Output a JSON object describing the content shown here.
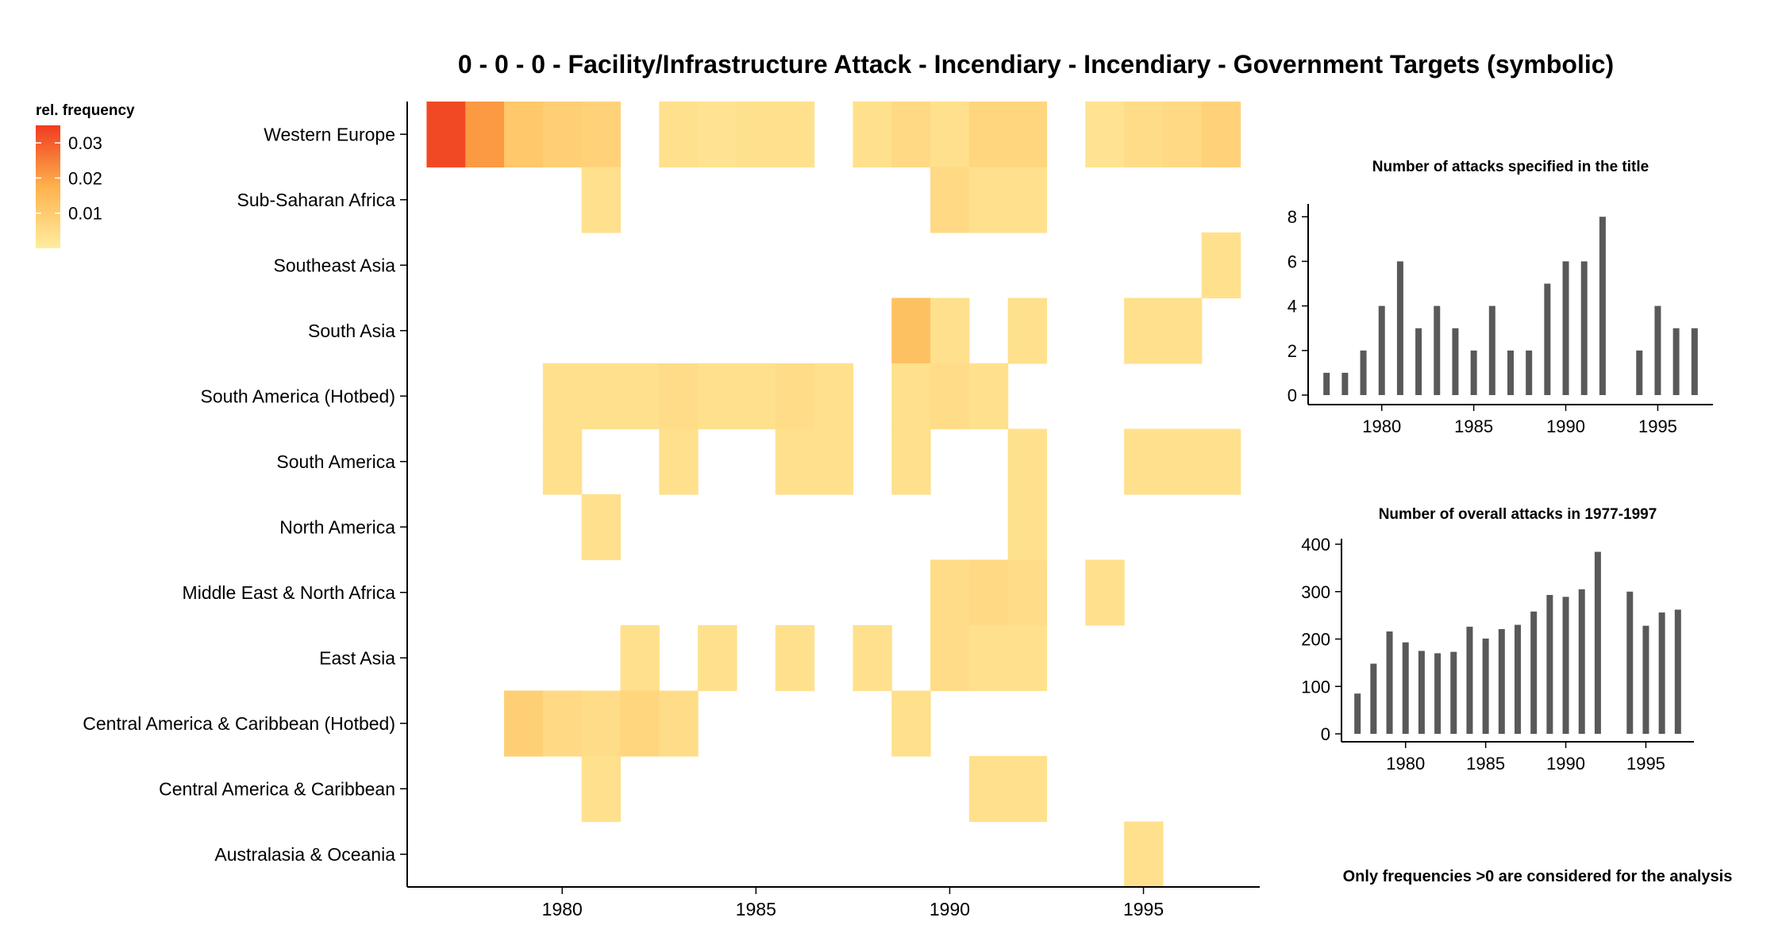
{
  "page": {
    "title": "0 - 0 - 0 - Facility/Infrastructure Attack - Incendiary - Incendiary - Government Targets (symbolic)",
    "footnote": "Only frequencies >0 are considered for the analysis"
  },
  "legend": {
    "title": "rel. frequency",
    "ticks": [
      {
        "value": 0.03,
        "label": "0.03"
      },
      {
        "value": 0.02,
        "label": "0.02"
      },
      {
        "value": 0.01,
        "label": "0.01"
      }
    ],
    "range": [
      0.0,
      0.035
    ]
  },
  "colors": {
    "low": "#FFEDA0",
    "mid": "#FEB24C",
    "high": "#F03B20",
    "bar": "#595959",
    "axis": "#000000"
  },
  "chart_data": [
    {
      "type": "heatmap",
      "title": "0 - 0 - 0 - Facility/Infrastructure Attack - Incendiary - Incendiary - Government Targets (symbolic)",
      "xlabel": "",
      "ylabel": "",
      "xlim": [
        1976,
        1998
      ],
      "x_ticks": [
        1980,
        1985,
        1990,
        1995
      ],
      "regions": [
        "Western Europe",
        "Sub-Saharan Africa",
        "Southeast Asia",
        "South Asia",
        "South America (Hotbed)",
        "South America",
        "North America",
        "Middle East & North Africa",
        "East Asia",
        "Central America & Caribbean (Hotbed)",
        "Central America & Caribbean",
        "Australasia & Oceania"
      ],
      "cells": [
        {
          "region": "Western Europe",
          "year": 1977,
          "value": 0.033
        },
        {
          "region": "Western Europe",
          "year": 1978,
          "value": 0.021
        },
        {
          "region": "Western Europe",
          "year": 1979,
          "value": 0.011
        },
        {
          "region": "Western Europe",
          "year": 1980,
          "value": 0.009
        },
        {
          "region": "Western Europe",
          "year": 1981,
          "value": 0.008
        },
        {
          "region": "Western Europe",
          "year": 1983,
          "value": 0.004
        },
        {
          "region": "Western Europe",
          "year": 1984,
          "value": 0.003
        },
        {
          "region": "Western Europe",
          "year": 1985,
          "value": 0.004
        },
        {
          "region": "Western Europe",
          "year": 1986,
          "value": 0.004
        },
        {
          "region": "Western Europe",
          "year": 1988,
          "value": 0.004
        },
        {
          "region": "Western Europe",
          "year": 1989,
          "value": 0.006
        },
        {
          "region": "Western Europe",
          "year": 1990,
          "value": 0.004
        },
        {
          "region": "Western Europe",
          "year": 1991,
          "value": 0.007
        },
        {
          "region": "Western Europe",
          "year": 1992,
          "value": 0.007
        },
        {
          "region": "Western Europe",
          "year": 1994,
          "value": 0.003
        },
        {
          "region": "Western Europe",
          "year": 1995,
          "value": 0.005
        },
        {
          "region": "Western Europe",
          "year": 1996,
          "value": 0.006
        },
        {
          "region": "Western Europe",
          "year": 1997,
          "value": 0.008
        },
        {
          "region": "Sub-Saharan Africa",
          "year": 1981,
          "value": 0.004
        },
        {
          "region": "Sub-Saharan Africa",
          "year": 1990,
          "value": 0.006
        },
        {
          "region": "Sub-Saharan Africa",
          "year": 1991,
          "value": 0.004
        },
        {
          "region": "Sub-Saharan Africa",
          "year": 1992,
          "value": 0.004
        },
        {
          "region": "Southeast Asia",
          "year": 1997,
          "value": 0.004
        },
        {
          "region": "South Asia",
          "year": 1989,
          "value": 0.013
        },
        {
          "region": "South Asia",
          "year": 1990,
          "value": 0.004
        },
        {
          "region": "South Asia",
          "year": 1992,
          "value": 0.004
        },
        {
          "region": "South Asia",
          "year": 1995,
          "value": 0.004
        },
        {
          "region": "South Asia",
          "year": 1996,
          "value": 0.004
        },
        {
          "region": "South America (Hotbed)",
          "year": 1980,
          "value": 0.004
        },
        {
          "region": "South America (Hotbed)",
          "year": 1981,
          "value": 0.004
        },
        {
          "region": "South America (Hotbed)",
          "year": 1982,
          "value": 0.004
        },
        {
          "region": "South America (Hotbed)",
          "year": 1983,
          "value": 0.005
        },
        {
          "region": "South America (Hotbed)",
          "year": 1984,
          "value": 0.004
        },
        {
          "region": "South America (Hotbed)",
          "year": 1985,
          "value": 0.004
        },
        {
          "region": "South America (Hotbed)",
          "year": 1986,
          "value": 0.005
        },
        {
          "region": "South America (Hotbed)",
          "year": 1987,
          "value": 0.004
        },
        {
          "region": "South America (Hotbed)",
          "year": 1989,
          "value": 0.004
        },
        {
          "region": "South America (Hotbed)",
          "year": 1990,
          "value": 0.005
        },
        {
          "region": "South America (Hotbed)",
          "year": 1991,
          "value": 0.004
        },
        {
          "region": "South America",
          "year": 1980,
          "value": 0.004
        },
        {
          "region": "South America",
          "year": 1983,
          "value": 0.004
        },
        {
          "region": "South America",
          "year": 1986,
          "value": 0.004
        },
        {
          "region": "South America",
          "year": 1987,
          "value": 0.004
        },
        {
          "region": "South America",
          "year": 1989,
          "value": 0.004
        },
        {
          "region": "South America",
          "year": 1992,
          "value": 0.004
        },
        {
          "region": "South America",
          "year": 1995,
          "value": 0.004
        },
        {
          "region": "South America",
          "year": 1996,
          "value": 0.004
        },
        {
          "region": "South America",
          "year": 1997,
          "value": 0.004
        },
        {
          "region": "North America",
          "year": 1981,
          "value": 0.004
        },
        {
          "region": "North America",
          "year": 1992,
          "value": 0.004
        },
        {
          "region": "Middle East & North Africa",
          "year": 1990,
          "value": 0.005
        },
        {
          "region": "Middle East & North Africa",
          "year": 1991,
          "value": 0.006
        },
        {
          "region": "Middle East & North Africa",
          "year": 1992,
          "value": 0.005
        },
        {
          "region": "Middle East & North Africa",
          "year": 1994,
          "value": 0.004
        },
        {
          "region": "East Asia",
          "year": 1982,
          "value": 0.004
        },
        {
          "region": "East Asia",
          "year": 1984,
          "value": 0.004
        },
        {
          "region": "East Asia",
          "year": 1986,
          "value": 0.004
        },
        {
          "region": "East Asia",
          "year": 1988,
          "value": 0.004
        },
        {
          "region": "East Asia",
          "year": 1990,
          "value": 0.005
        },
        {
          "region": "East Asia",
          "year": 1991,
          "value": 0.004
        },
        {
          "region": "East Asia",
          "year": 1992,
          "value": 0.004
        },
        {
          "region": "Central America & Caribbean (Hotbed)",
          "year": 1979,
          "value": 0.009
        },
        {
          "region": "Central America & Caribbean (Hotbed)",
          "year": 1980,
          "value": 0.006
        },
        {
          "region": "Central America & Caribbean (Hotbed)",
          "year": 1981,
          "value": 0.005
        },
        {
          "region": "Central America & Caribbean (Hotbed)",
          "year": 1982,
          "value": 0.007
        },
        {
          "region": "Central America & Caribbean (Hotbed)",
          "year": 1983,
          "value": 0.005
        },
        {
          "region": "Central America & Caribbean (Hotbed)",
          "year": 1989,
          "value": 0.004
        },
        {
          "region": "Central America & Caribbean",
          "year": 1981,
          "value": 0.004
        },
        {
          "region": "Central America & Caribbean",
          "year": 1991,
          "value": 0.004
        },
        {
          "region": "Central America & Caribbean",
          "year": 1992,
          "value": 0.004
        },
        {
          "region": "Australasia & Oceania",
          "year": 1995,
          "value": 0.004
        }
      ]
    },
    {
      "type": "bar",
      "title": "Number of attacks specified in the title",
      "xlim": [
        1976,
        1998
      ],
      "ylim": [
        0,
        8.4
      ],
      "x_ticks": [
        1980,
        1985,
        1990,
        1995
      ],
      "y_ticks": [
        0,
        2,
        4,
        6,
        8
      ],
      "x": [
        1977,
        1978,
        1979,
        1980,
        1981,
        1982,
        1983,
        1984,
        1985,
        1986,
        1987,
        1988,
        1989,
        1990,
        1991,
        1992,
        1994,
        1995,
        1996,
        1997
      ],
      "values": [
        1,
        1,
        2,
        4,
        6,
        3,
        4,
        3,
        2,
        4,
        2,
        2,
        5,
        6,
        6,
        8,
        2,
        4,
        3,
        3
      ]
    },
    {
      "type": "bar",
      "title": "Number of overall attacks in 1977-1997",
      "xlim": [
        1976,
        1998
      ],
      "ylim": [
        0,
        400
      ],
      "x_ticks": [
        1980,
        1985,
        1990,
        1995
      ],
      "y_ticks": [
        0,
        100,
        200,
        300,
        400
      ],
      "x": [
        1977,
        1978,
        1979,
        1980,
        1981,
        1982,
        1983,
        1984,
        1985,
        1986,
        1987,
        1988,
        1989,
        1990,
        1991,
        1992,
        1994,
        1995,
        1996,
        1997
      ],
      "values": [
        85,
        148,
        216,
        193,
        175,
        170,
        173,
        226,
        201,
        221,
        230,
        258,
        293,
        289,
        305,
        384,
        300,
        228,
        256,
        262
      ]
    }
  ]
}
